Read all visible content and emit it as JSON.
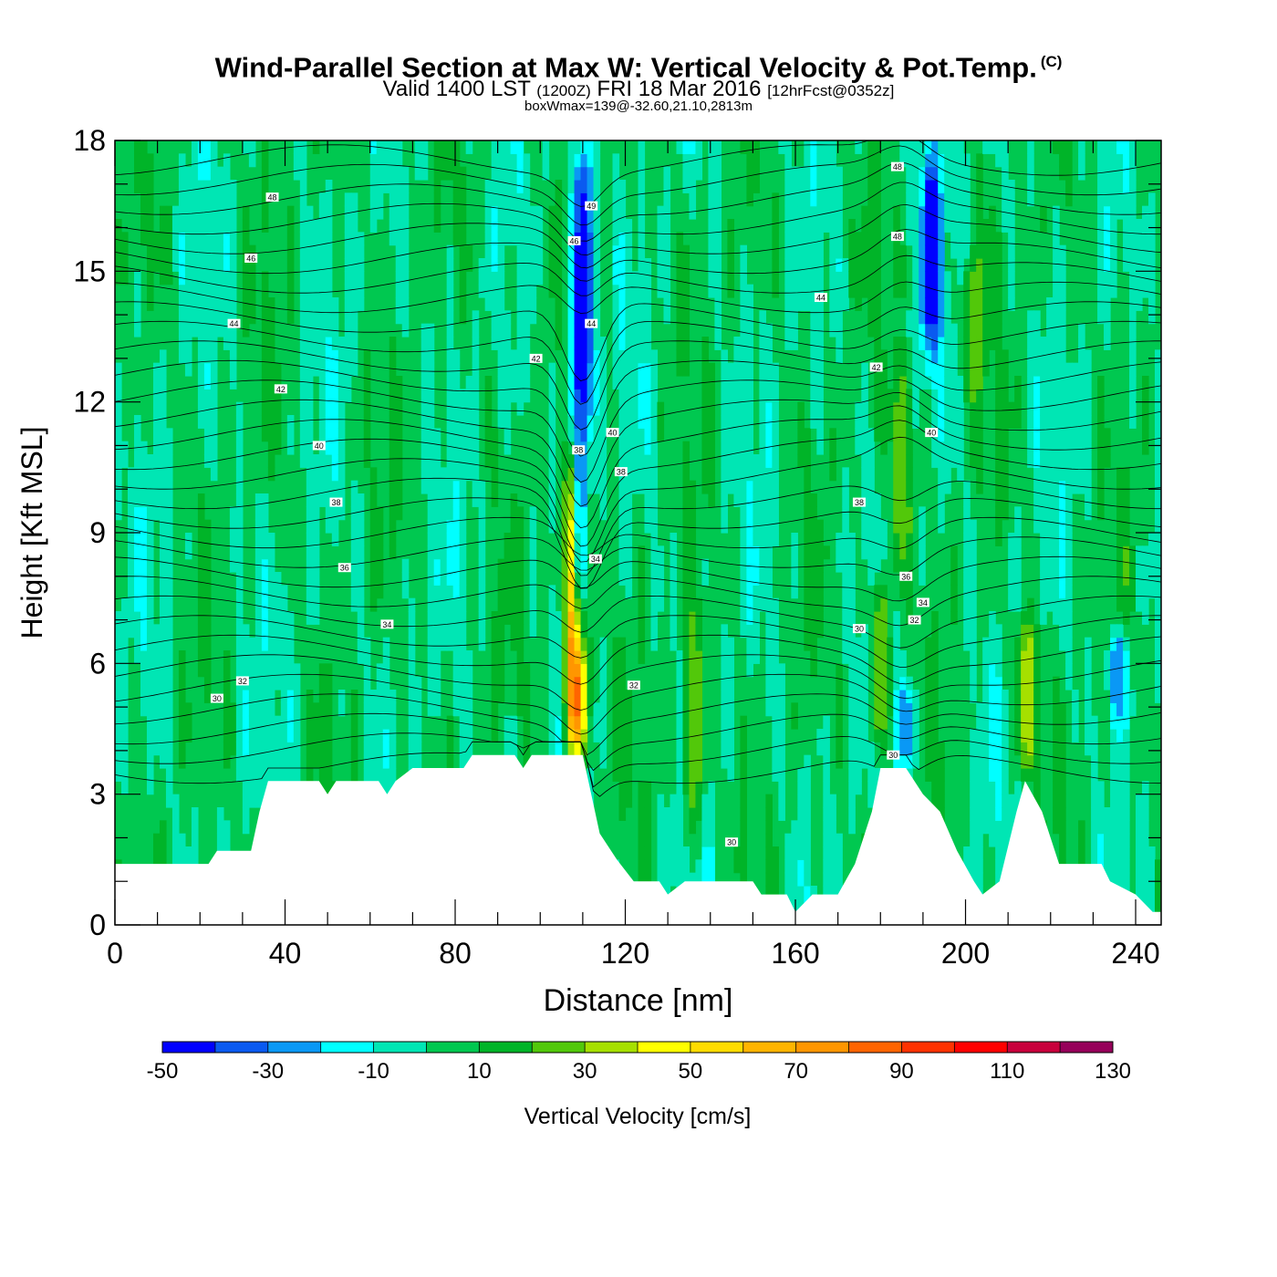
{
  "header": {
    "title": "Wind-Parallel Section at Max W: Vertical Velocity & Pot.Temp.",
    "title_mark": "(C)",
    "subtitle_main": "Valid 1400 LST",
    "subtitle_utc": "(1200Z)",
    "subtitle_date": "FRI 18 Mar 2016",
    "subtitle_fcst": "[12hrFcst@0352z]",
    "subnote": "boxWmax=139@-32.60,21.10,2813m"
  },
  "chart_data": {
    "type": "heatmap",
    "xlabel": "Distance [nm]",
    "ylabel": "Height [Kft MSL]",
    "xlim": [
      0,
      246
    ],
    "ylim": [
      0,
      18
    ],
    "x_ticks": [
      0,
      40,
      80,
      120,
      160,
      200,
      240
    ],
    "y_ticks": [
      0,
      3,
      6,
      9,
      12,
      15,
      18
    ],
    "colorbar": {
      "label": "Vertical Velocity [cm/s]",
      "levels": [
        -50,
        -40,
        -30,
        -20,
        -10,
        0,
        10,
        20,
        30,
        40,
        50,
        60,
        70,
        80,
        90,
        100,
        110,
        120,
        130
      ],
      "tick_labels": [
        "-50",
        "-30",
        "-10",
        "10",
        "30",
        "50",
        "70",
        "90",
        "110",
        "130"
      ],
      "colors": [
        "#0000ff",
        "#0a5af0",
        "#0a98f5",
        "#00ffff",
        "#00e6b4",
        "#00c850",
        "#00b428",
        "#52c80a",
        "#a6e000",
        "#ffff00",
        "#ffdc00",
        "#ffb400",
        "#ff9600",
        "#ff6400",
        "#ff3200",
        "#ff0000",
        "#c8003c",
        "#96005a"
      ]
    },
    "terrain": [
      [
        0,
        1.4
      ],
      [
        22,
        1.4
      ],
      [
        24,
        1.7
      ],
      [
        32,
        1.7
      ],
      [
        34,
        2.6
      ],
      [
        36,
        3.3
      ],
      [
        48,
        3.3
      ],
      [
        50,
        3.0
      ],
      [
        52,
        3.3
      ],
      [
        62,
        3.3
      ],
      [
        64,
        3.0
      ],
      [
        66,
        3.3
      ],
      [
        70,
        3.6
      ],
      [
        82,
        3.6
      ],
      [
        84,
        3.9
      ],
      [
        94,
        3.9
      ],
      [
        96,
        3.6
      ],
      [
        98,
        3.9
      ],
      [
        110,
        3.9
      ],
      [
        112,
        3.0
      ],
      [
        114,
        2.1
      ],
      [
        118,
        1.5
      ],
      [
        122,
        1.0
      ],
      [
        128,
        1.0
      ],
      [
        130,
        0.7
      ],
      [
        134,
        1.0
      ],
      [
        150,
        1.0
      ],
      [
        152,
        0.7
      ],
      [
        158,
        0.7
      ],
      [
        160,
        0.3
      ],
      [
        164,
        0.7
      ],
      [
        170,
        0.7
      ],
      [
        174,
        1.4
      ],
      [
        178,
        2.6
      ],
      [
        180,
        3.6
      ],
      [
        186,
        3.6
      ],
      [
        190,
        3.0
      ],
      [
        194,
        2.6
      ],
      [
        198,
        1.7
      ],
      [
        202,
        1.0
      ],
      [
        204,
        0.7
      ],
      [
        208,
        1.0
      ],
      [
        212,
        2.6
      ],
      [
        214,
        3.3
      ],
      [
        218,
        2.6
      ],
      [
        222,
        1.4
      ],
      [
        232,
        1.4
      ],
      [
        234,
        1.0
      ],
      [
        240,
        0.7
      ],
      [
        244,
        0.3
      ],
      [
        246,
        0.3
      ]
    ],
    "w_features": [
      {
        "x": 108.5,
        "ymin": 4.0,
        "ymax": 10.8,
        "w": 130
      },
      {
        "x": 109.5,
        "ymin": 6.0,
        "ymax": 16.5,
        "w": -30
      },
      {
        "x": 110.0,
        "ymin": 11.5,
        "ymax": 18.0,
        "w": -50
      },
      {
        "x": 192.0,
        "ymin": 13.0,
        "ymax": 18.0,
        "w": -50
      },
      {
        "x": 186.0,
        "ymin": 3.6,
        "ymax": 5.5,
        "w": -30
      },
      {
        "x": 236.0,
        "ymin": 4.5,
        "ymax": 6.8,
        "w": -30
      },
      {
        "x": 136.0,
        "ymin": 2.0,
        "ymax": 7.5,
        "w": 30
      },
      {
        "x": 214.5,
        "ymin": 3.5,
        "ymax": 7.0,
        "w": 40
      },
      {
        "x": 185.0,
        "ymin": 8.0,
        "ymax": 13.0,
        "w": 30
      },
      {
        "x": 202.0,
        "ymin": 12.0,
        "ymax": 18.0,
        "w": 30
      },
      {
        "x": 180.0,
        "ymin": 4.0,
        "ymax": 8.0,
        "w": 30
      },
      {
        "x": 200.0,
        "ymin": 15.0,
        "ymax": 18.0,
        "w": -10
      }
    ],
    "theta_contours": [
      {
        "label": "30",
        "base": 5.2,
        "label_x": 24,
        "label_y": 5.2
      },
      {
        "label": "32",
        "base": 5.6,
        "label_x": 30,
        "label_y": 5.6
      },
      {
        "label": "34",
        "base": 6.9,
        "label_x": 64,
        "label_y": 6.9
      },
      {
        "label": "36",
        "base": 8.2,
        "label_x": 54,
        "label_y": 8.2
      },
      {
        "label": "38",
        "base": 9.7,
        "label_x": 52,
        "label_y": 9.7
      },
      {
        "label": "40",
        "base": 11.0,
        "label_x": 48,
        "label_y": 11.0
      },
      {
        "label": "42",
        "base": 12.3,
        "label_x": 39,
        "label_y": 12.3
      },
      {
        "label": "44",
        "base": 13.8,
        "label_x": 28,
        "label_y": 13.8
      },
      {
        "label": "46",
        "base": 15.3,
        "label_x": 32,
        "label_y": 15.3
      },
      {
        "label": "48",
        "base": 16.7,
        "label_x": 37,
        "label_y": 16.7
      }
    ],
    "extra_labels": [
      {
        "label": "49",
        "x": 112,
        "y": 16.5
      },
      {
        "label": "46",
        "x": 108,
        "y": 15.7
      },
      {
        "label": "44",
        "x": 112,
        "y": 13.8
      },
      {
        "label": "42",
        "x": 99,
        "y": 13.0
      },
      {
        "label": "40",
        "x": 117,
        "y": 11.3
      },
      {
        "label": "38",
        "x": 109,
        "y": 10.9
      },
      {
        "label": "38",
        "x": 119,
        "y": 10.4
      },
      {
        "label": "34",
        "x": 113,
        "y": 8.4
      },
      {
        "label": "32",
        "x": 122,
        "y": 5.5
      },
      {
        "label": "30",
        "x": 145,
        "y": 1.9
      },
      {
        "label": "48",
        "x": 184,
        "y": 17.4
      },
      {
        "label": "48",
        "x": 184,
        "y": 15.8
      },
      {
        "label": "44",
        "x": 166,
        "y": 14.4
      },
      {
        "label": "42",
        "x": 179,
        "y": 12.8
      },
      {
        "label": "40",
        "x": 192,
        "y": 11.3
      },
      {
        "label": "38",
        "x": 175,
        "y": 9.7
      },
      {
        "label": "36",
        "x": 186,
        "y": 8.0
      },
      {
        "label": "34",
        "x": 190,
        "y": 7.4
      },
      {
        "label": "32",
        "x": 188,
        "y": 7.0
      },
      {
        "label": "30",
        "x": 175,
        "y": 6.8
      },
      {
        "label": "30",
        "x": 183,
        "y": 3.9
      }
    ]
  }
}
